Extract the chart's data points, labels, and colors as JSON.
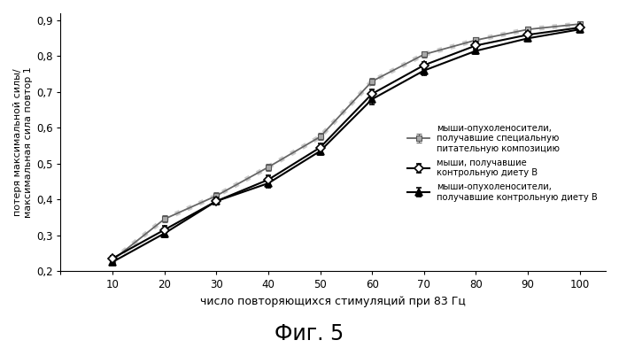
{
  "x": [
    10,
    20,
    30,
    40,
    50,
    60,
    70,
    80,
    90,
    100
  ],
  "series1_y": [
    0.235,
    0.315,
    0.395,
    0.455,
    0.545,
    0.695,
    0.775,
    0.83,
    0.86,
    0.88
  ],
  "series2_y": [
    0.225,
    0.305,
    0.395,
    0.445,
    0.535,
    0.68,
    0.76,
    0.815,
    0.85,
    0.875
  ],
  "series3_y": [
    0.23,
    0.345,
    0.41,
    0.49,
    0.575,
    0.73,
    0.805,
    0.845,
    0.875,
    0.89
  ],
  "series1_err": [
    0.008,
    0.01,
    0.01,
    0.012,
    0.012,
    0.012,
    0.01,
    0.01,
    0.008,
    0.008
  ],
  "series2_err": [
    0.008,
    0.01,
    0.01,
    0.012,
    0.012,
    0.015,
    0.012,
    0.01,
    0.008,
    0.01
  ],
  "series3_err": [
    0.008,
    0.01,
    0.01,
    0.01,
    0.01,
    0.01,
    0.008,
    0.008,
    0.008,
    0.008
  ],
  "xlim": [
    0,
    105
  ],
  "ylim": [
    0.2,
    0.92
  ],
  "xticks": [
    0,
    10,
    20,
    30,
    40,
    50,
    60,
    70,
    80,
    90,
    100
  ],
  "yticks": [
    0.2,
    0.3,
    0.4,
    0.5,
    0.6,
    0.7,
    0.8,
    0.9
  ],
  "xlabel": "число повторяющихся стимуляций при 83 Гц",
  "ylabel": "потеря максимальной силы/\nмаксимальная сила повтор 1",
  "fig_title": "Фиг. 5",
  "legend1": "мыши, получавшие\nконтрольную диету B",
  "legend2": "мыши-опухоленосители,\nполучавшие контрольную диету B",
  "legend3": "мыши-опухоленосители,\nполучавшие специальную\nпитательную композицию",
  "bg_color": "#ffffff"
}
